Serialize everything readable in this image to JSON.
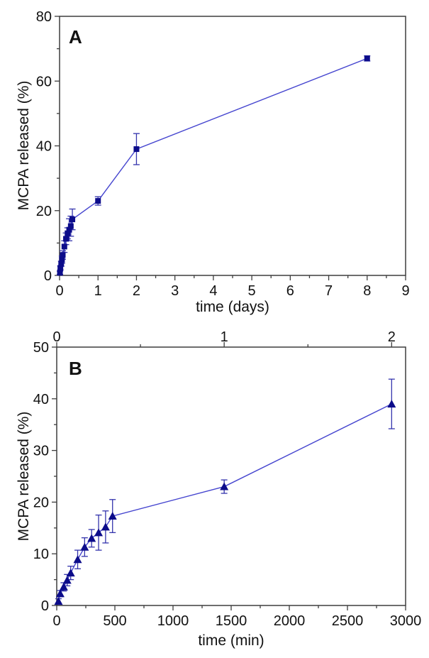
{
  "figure_title": "MCPA release kinetics figure",
  "colors": {
    "line": "#4545cf",
    "marker": "#0c0c8a",
    "error_bar": "#3434ad",
    "axis": "#3d3d3d",
    "text": "#111111",
    "background": "#ffffff"
  },
  "chart_data": [
    {
      "type": "line",
      "panel_label": "A",
      "xlabel": "time (days)",
      "ylabel": "MCPA released (%)",
      "xlim": [
        0,
        9
      ],
      "ylim": [
        0,
        80
      ],
      "xticks": [
        0,
        1,
        2,
        3,
        4,
        5,
        6,
        7,
        8,
        9
      ],
      "xminor_step": 0.5,
      "yticks": [
        0,
        20,
        40,
        60,
        80
      ],
      "yminor_step": 10,
      "grid": false,
      "legend": "none",
      "marker": "square",
      "series": [
        {
          "name": "MCPA released",
          "x": [
            0.01,
            0.021,
            0.042,
            0.063,
            0.083,
            0.125,
            0.167,
            0.208,
            0.25,
            0.292,
            0.333,
            1,
            2,
            8
          ],
          "y": [
            0.8,
            2.3,
            3.6,
            4.9,
            6.3,
            8.9,
            11.3,
            13.0,
            14.1,
            15.2,
            17.3,
            23.0,
            39.0,
            67.0
          ],
          "yerr": [
            0.5,
            0.6,
            0.8,
            1.1,
            1.3,
            1.8,
            1.8,
            1.7,
            3.4,
            3.1,
            3.2,
            1.3,
            4.8,
            0.8
          ]
        }
      ]
    },
    {
      "type": "line",
      "panel_label": "B",
      "xlabel": "time (min)",
      "ylabel": "MCPA released (%)",
      "xlim": [
        0,
        3000
      ],
      "ylim": [
        0,
        50
      ],
      "xticks": [
        0,
        500,
        1000,
        1500,
        2000,
        2500,
        3000
      ],
      "xminor_step": 250,
      "yticks": [
        0,
        10,
        20,
        30,
        40,
        50
      ],
      "yminor_step": 5,
      "grid": false,
      "legend": "none",
      "marker": "triangle",
      "top_axis": {
        "unit": "days",
        "tick_labels": [
          "0",
          "1",
          "2"
        ],
        "tick_positions_min": [
          0,
          1440,
          2880
        ],
        "minor_positions_min": [
          720,
          2160
        ]
      },
      "series": [
        {
          "name": "MCPA released",
          "x": [
            15,
            30,
            60,
            90,
            120,
            180,
            240,
            300,
            360,
            420,
            480,
            1440,
            2880
          ],
          "y": [
            0.8,
            2.3,
            3.6,
            4.9,
            6.3,
            8.9,
            11.3,
            13.0,
            14.1,
            15.2,
            17.3,
            23.0,
            39.0
          ],
          "yerr": [
            0.5,
            0.6,
            0.8,
            1.1,
            1.3,
            1.8,
            1.8,
            1.7,
            3.4,
            3.1,
            3.2,
            1.3,
            4.8
          ]
        }
      ]
    }
  ]
}
